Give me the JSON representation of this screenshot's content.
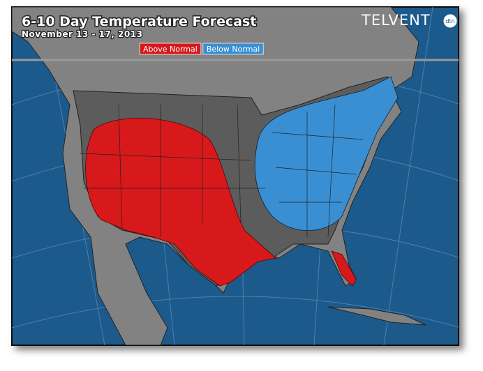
{
  "header": {
    "title": "6-10 Day Temperature Forecast",
    "subtitle": "November 13 - 17, 2013",
    "logo": "TELVENT",
    "logo_badge": "dtn"
  },
  "legend": [
    {
      "label": "Above Normal",
      "color": "#d7191c"
    },
    {
      "label": "Below Normal",
      "color": "#3a8fd2"
    }
  ]
}
